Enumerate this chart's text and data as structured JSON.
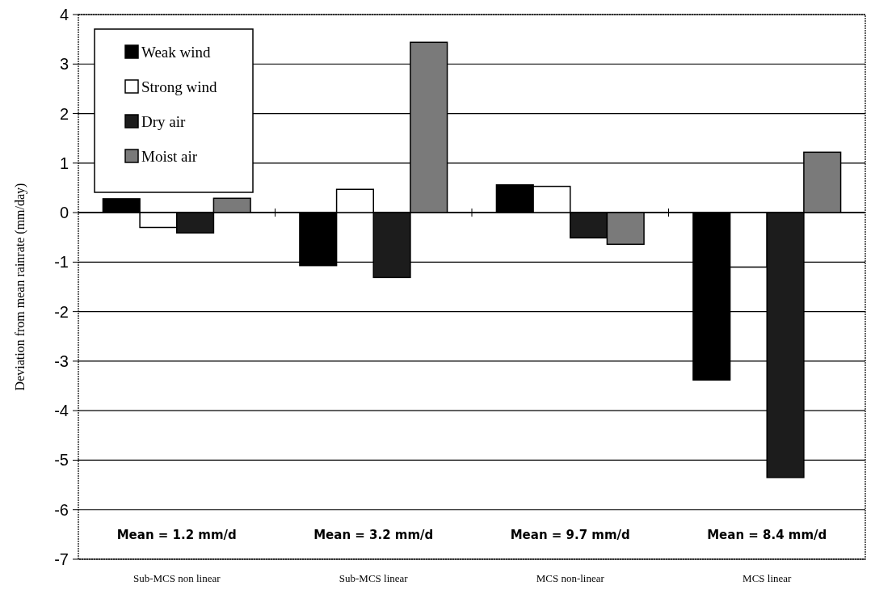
{
  "chart_data": {
    "type": "bar",
    "ylabel": "Deviation from mean rainrate (mm/day)",
    "categories": [
      "Sub-MCS non linear",
      "Sub-MCS linear",
      "MCS non-linear",
      "MCS linear"
    ],
    "series": [
      {
        "name": "Weak wind",
        "color": "#000000",
        "values": [
          0.28,
          -1.07,
          0.56,
          -3.38
        ]
      },
      {
        "name": "Strong wind",
        "color": "#ffffff",
        "values": [
          -0.3,
          0.47,
          0.53,
          -1.1
        ]
      },
      {
        "name": "Dry air",
        "color": "#1c1c1c",
        "values": [
          -0.41,
          -1.31,
          -0.51,
          -5.35
        ]
      },
      {
        "name": "Moist air",
        "color": "#7a7a7a",
        "values": [
          0.29,
          3.44,
          -0.64,
          1.22
        ]
      }
    ],
    "ylim": [
      -7,
      4
    ],
    "yticks": [
      -7,
      -6,
      -5,
      -4,
      -3,
      -2,
      -1,
      0,
      1,
      2,
      3,
      4
    ],
    "grid": "y",
    "legend": "top left",
    "annotations": [
      "Mean = 1.2 mm/d",
      "Mean = 3.2 mm/d",
      "Mean = 9.7 mm/d",
      "Mean = 8.4 mm/d"
    ]
  }
}
